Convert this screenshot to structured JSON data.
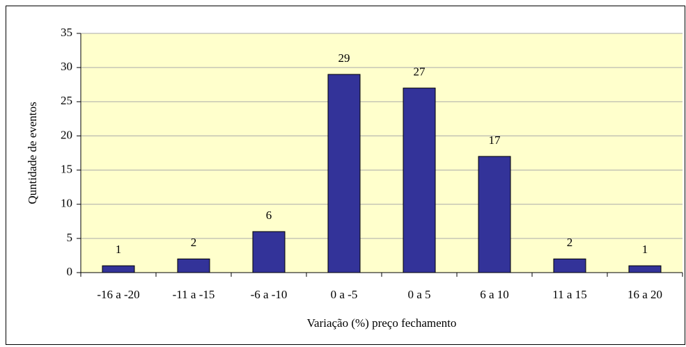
{
  "chart_data": {
    "type": "bar",
    "categories": [
      "-16 a -20",
      "-11 a -15",
      "-6 a -10",
      "0 a -5",
      "0 a 5",
      "6 a 10",
      "11 a 15",
      "16 a 20"
    ],
    "values": [
      1,
      2,
      6,
      29,
      27,
      17,
      2,
      1
    ],
    "color": "#333399",
    "x_label": "Variação (%) preço fechamento",
    "y_label": "Quntidade de eventos",
    "ylim": [
      0,
      35
    ],
    "yticks": [
      0,
      5,
      10,
      15,
      20,
      25,
      30,
      35
    ],
    "grid": true,
    "data_labels": true
  }
}
